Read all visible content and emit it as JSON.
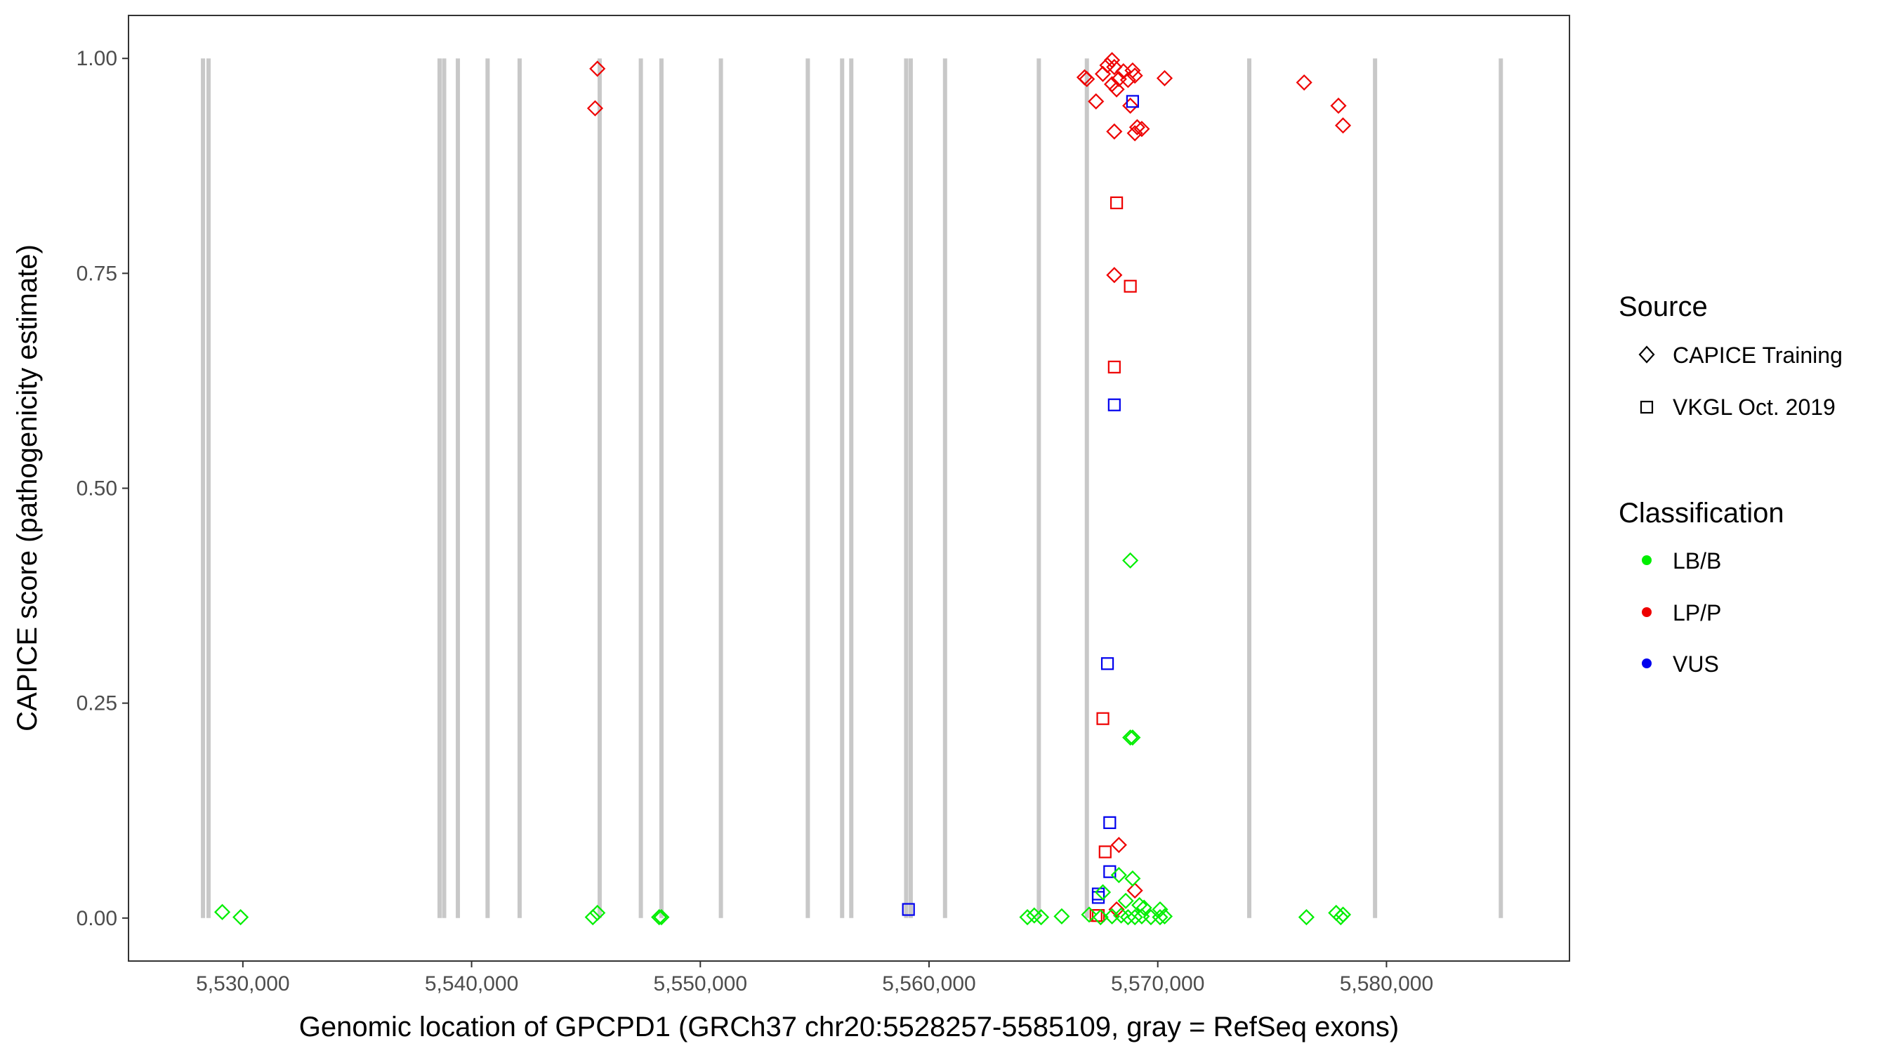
{
  "chart_data": {
    "type": "scatter",
    "xlabel": "Genomic location of GPCPD1 (GRCh37 chr20:5528257-5585109, gray = RefSeq exons)",
    "ylabel": "CAPICE score (pathogenicity estimate)",
    "xlim": [
      5525000,
      5588000
    ],
    "ylim": [
      -0.05,
      1.05
    ],
    "x_ticks": [
      5530000,
      5540000,
      5550000,
      5560000,
      5570000,
      5580000
    ],
    "x_tick_labels": [
      "5,530,000",
      "5,540,000",
      "5,550,000",
      "5,560,000",
      "5,570,000",
      "5,580,000"
    ],
    "y_ticks": [
      0,
      0.25,
      0.5,
      0.75,
      1.0
    ],
    "y_tick_labels": [
      "0.00",
      "0.25",
      "0.50",
      "0.75",
      "1.00"
    ],
    "grid": false,
    "legend_position": "right",
    "exons": [
      5528257,
      5528500,
      5538600,
      5538800,
      5539400,
      5540700,
      5542100,
      5545600,
      5547400,
      5548300,
      5550900,
      5554700,
      5556200,
      5556600,
      5559000,
      5559200,
      5560700,
      5564800,
      5566900,
      5574000,
      5579500,
      5585000
    ],
    "legends": {
      "source": {
        "title": "Source",
        "items": [
          {
            "label": "CAPICE Training",
            "shape": "diamond"
          },
          {
            "label": "VKGL Oct. 2019",
            "shape": "square"
          }
        ]
      },
      "classification": {
        "title": "Classification",
        "items": [
          {
            "label": "LB/B",
            "color": "#00ee00"
          },
          {
            "label": "LP/P",
            "color": "#ee0000"
          },
          {
            "label": "VUS",
            "color": "#0000ee"
          }
        ]
      }
    },
    "series": [
      {
        "source": "CAPICE Training",
        "classification": "LP/P",
        "shape": "diamond",
        "color": "#ee0000",
        "points": [
          [
            5545500,
            0.988
          ],
          [
            5545400,
            0.942
          ],
          [
            5566800,
            0.978
          ],
          [
            5566900,
            0.976
          ],
          [
            5567300,
            0.95
          ],
          [
            5567600,
            0.982
          ],
          [
            5567800,
            0.992
          ],
          [
            5568000,
            0.998
          ],
          [
            5568100,
            0.99
          ],
          [
            5568300,
            0.976
          ],
          [
            5568500,
            0.985
          ],
          [
            5568000,
            0.97
          ],
          [
            5568200,
            0.964
          ],
          [
            5568700,
            0.975
          ],
          [
            5568900,
            0.986
          ],
          [
            5569000,
            0.98
          ],
          [
            5568800,
            0.945
          ],
          [
            5568100,
            0.915
          ],
          [
            5569000,
            0.913
          ],
          [
            5569300,
            0.918
          ],
          [
            5569100,
            0.92
          ],
          [
            5570300,
            0.977
          ],
          [
            5576400,
            0.972
          ],
          [
            5577900,
            0.945
          ],
          [
            5578100,
            0.922
          ],
          [
            5568100,
            0.748
          ],
          [
            5568300,
            0.085
          ],
          [
            5568200,
            0.01
          ],
          [
            5569000,
            0.032
          ]
        ]
      },
      {
        "source": "VKGL Oct. 2019",
        "classification": "LP/P",
        "shape": "square",
        "color": "#ee0000",
        "points": [
          [
            5568200,
            0.832
          ],
          [
            5568800,
            0.735
          ],
          [
            5568100,
            0.641
          ],
          [
            5567600,
            0.232
          ],
          [
            5567700,
            0.077
          ],
          [
            5567400,
            0.003
          ],
          [
            5567300,
            0.003
          ]
        ]
      },
      {
        "source": "VKGL Oct. 2019",
        "classification": "VUS",
        "shape": "square",
        "color": "#0000ee",
        "points": [
          [
            5568900,
            0.95
          ],
          [
            5568100,
            0.597
          ],
          [
            5567800,
            0.296
          ],
          [
            5567900,
            0.111
          ],
          [
            5567900,
            0.054
          ],
          [
            5567400,
            0.028
          ],
          [
            5567400,
            0.024
          ],
          [
            5559100,
            0.01
          ]
        ]
      },
      {
        "source": "CAPICE Training",
        "classification": "LB/B",
        "shape": "diamond",
        "color": "#00ee00",
        "points": [
          [
            5568800,
            0.416
          ],
          [
            5568800,
            0.21
          ],
          [
            5568900,
            0.21
          ],
          [
            5568900,
            0.046
          ],
          [
            5568300,
            0.05
          ],
          [
            5567600,
            0.03
          ],
          [
            5568600,
            0.02
          ],
          [
            5569200,
            0.015
          ],
          [
            5569400,
            0.012
          ],
          [
            5570100,
            0.01
          ],
          [
            5529100,
            0.007
          ],
          [
            5529900,
            0.001
          ],
          [
            5545500,
            0.006
          ],
          [
            5545300,
            0.001
          ],
          [
            5548200,
            0.001
          ],
          [
            5548300,
            0.001
          ],
          [
            5564300,
            0.001
          ],
          [
            5564600,
            0.003
          ],
          [
            5564900,
            0.001
          ],
          [
            5565800,
            0.002
          ],
          [
            5567000,
            0.004
          ],
          [
            5567500,
            0.001
          ],
          [
            5568000,
            0.002
          ],
          [
            5568400,
            0.003
          ],
          [
            5568700,
            0.001
          ],
          [
            5569000,
            0.001
          ],
          [
            5569300,
            0.002
          ],
          [
            5569700,
            0.001
          ],
          [
            5570100,
            0.001
          ],
          [
            5570300,
            0.002
          ],
          [
            5576500,
            0.001
          ],
          [
            5577800,
            0.006
          ],
          [
            5578000,
            0.001
          ],
          [
            5578100,
            0.004
          ]
        ]
      }
    ]
  }
}
